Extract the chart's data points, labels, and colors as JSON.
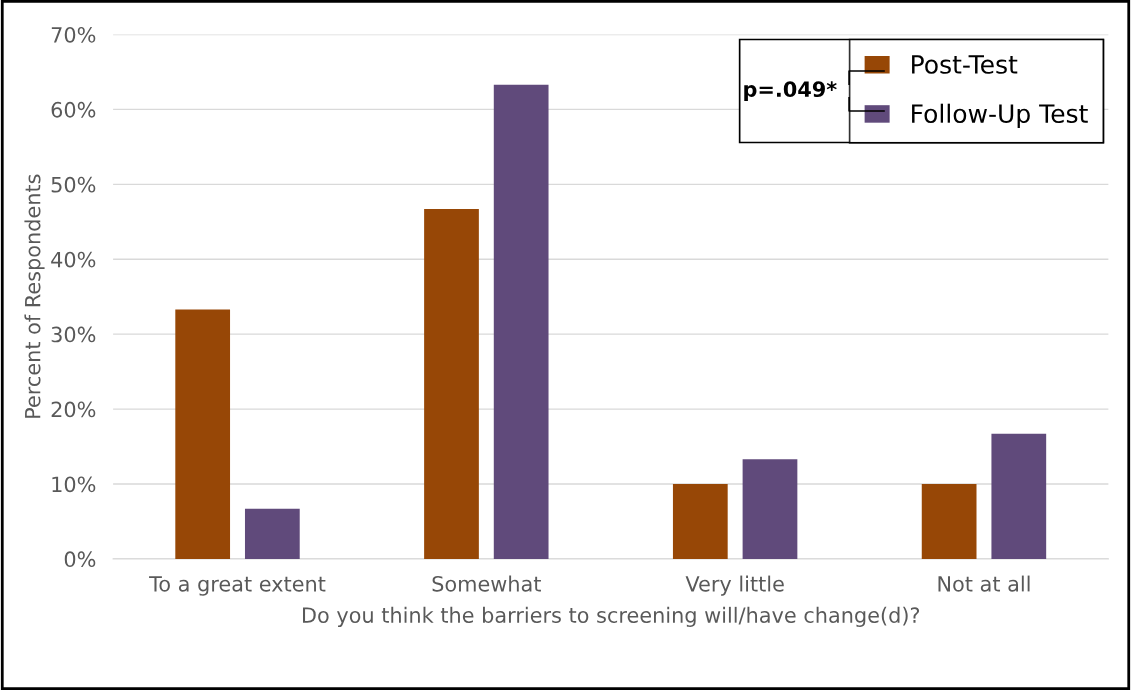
{
  "chart_data": {
    "type": "bar",
    "xlabel": "Do you think the barriers to screening will/have change(d)?",
    "ylabel": "Percent of Respondents",
    "categories": [
      "To a great extent",
      "Somewhat",
      "Very little",
      "Not at all"
    ],
    "series": [
      {
        "name": "Post-Test",
        "color": "#974706",
        "values": [
          33.3,
          46.7,
          10,
          10
        ]
      },
      {
        "name": "Follow-Up Test",
        "color": "#604a7b",
        "values": [
          6.7,
          63.3,
          13.3,
          16.7
        ]
      }
    ],
    "ylim": [
      0,
      70
    ],
    "yticks": [
      {
        "value": 0,
        "label": "0%"
      },
      {
        "value": 10,
        "label": "10%"
      },
      {
        "value": 20,
        "label": "20%"
      },
      {
        "value": 30,
        "label": "30%"
      },
      {
        "value": 40,
        "label": "40%"
      },
      {
        "value": 50,
        "label": "50%"
      },
      {
        "value": 60,
        "label": "60%"
      },
      {
        "value": 70,
        "label": "70%"
      }
    ],
    "grid": "y",
    "legend": "top right",
    "annotations": [
      "p=.049*"
    ]
  }
}
